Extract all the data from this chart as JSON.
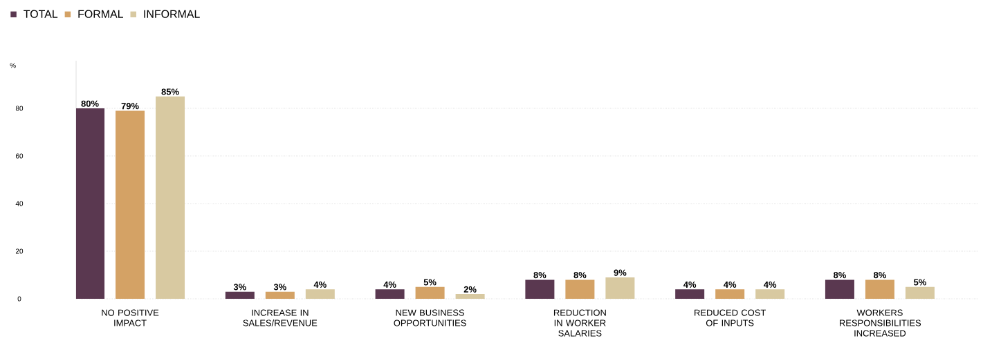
{
  "chart_data": {
    "type": "bar",
    "ylabel": "%",
    "categories": [
      "NO POSITIVE IMPACT",
      "INCREASE IN SALES/REVENUE",
      "NEW BUSINESS OPPORTUNITIES",
      "REDUCTION IN WORKER SALARIES",
      "REDUCED COST OF INPUTS",
      "WORKERS RESPONSIBILITIES INCREASED"
    ],
    "series": [
      {
        "name": "TOTAL",
        "color": "#5a3850",
        "values": [
          80,
          3,
          4,
          8,
          4,
          8
        ],
        "value_labels": [
          "80%",
          "3%",
          "4%",
          "8%",
          "4%",
          "8%"
        ]
      },
      {
        "name": "FORMAL",
        "color": "#d4a265",
        "values": [
          79,
          3,
          5,
          8,
          4,
          8
        ],
        "value_labels": [
          "79%",
          "3%",
          "5%",
          "8%",
          "4%",
          "8%"
        ]
      },
      {
        "name": "INFORMAL",
        "color": "#d8c9a1",
        "values": [
          85,
          4,
          2,
          9,
          4,
          5
        ],
        "value_labels": [
          "85%",
          "4%",
          "2%",
          "9%",
          "4%",
          "5%"
        ]
      }
    ],
    "ylim": [
      0,
      100
    ],
    "yticks": [
      0,
      20,
      40,
      60,
      80
    ],
    "grid": "y",
    "legend": "top left"
  }
}
